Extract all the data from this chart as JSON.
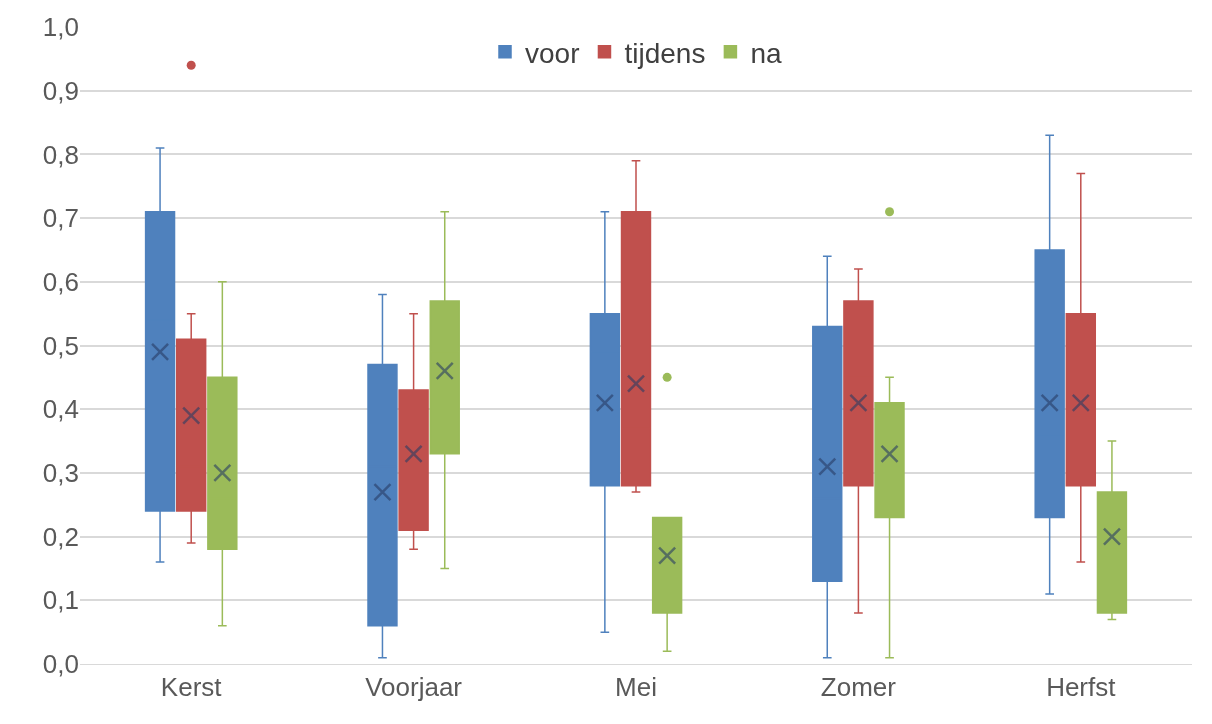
{
  "chart_data": {
    "type": "box",
    "categories": [
      "Kerst",
      "Voorjaar",
      "Mei",
      "Zomer",
      "Herfst"
    ],
    "ylim": [
      0,
      1
    ],
    "yticks": [
      {
        "value": 0,
        "label": "0,0"
      },
      {
        "value": 0.1,
        "label": "0,1"
      },
      {
        "value": 0.2,
        "label": "0,2"
      },
      {
        "value": 0.3,
        "label": "0,3"
      },
      {
        "value": 0.4,
        "label": "0,4"
      },
      {
        "value": 0.5,
        "label": "0,5"
      },
      {
        "value": 0.6,
        "label": "0,6"
      },
      {
        "value": 0.7,
        "label": "0,7"
      },
      {
        "value": 0.8,
        "label": "0,8"
      },
      {
        "value": 0.9,
        "label": "0,9"
      },
      {
        "value": 1,
        "label": "1,0"
      }
    ],
    "grid": "y",
    "legend": "top",
    "series": [
      {
        "name": "voor",
        "color": "#4f81bd",
        "boxes": [
          {
            "low": 0.16,
            "q1": 0.24,
            "median": 0.54,
            "q3": 0.71,
            "high": 0.81,
            "mean": 0.49
          },
          {
            "low": 0.01,
            "q1": 0.06,
            "median": 0.31,
            "q3": 0.47,
            "high": 0.58,
            "mean": 0.27
          },
          {
            "low": 0.05,
            "q1": 0.28,
            "median": 0.49,
            "q3": 0.55,
            "high": 0.71,
            "mean": 0.41
          },
          {
            "low": 0.01,
            "q1": 0.13,
            "median": 0.26,
            "q3": 0.53,
            "high": 0.64,
            "mean": 0.31
          },
          {
            "low": 0.11,
            "q1": 0.23,
            "median": 0.36,
            "q3": 0.65,
            "high": 0.83,
            "mean": 0.41
          }
        ]
      },
      {
        "name": "tijdens",
        "color": "#c0504d",
        "boxes": [
          {
            "low": 0.19,
            "q1": 0.24,
            "median": 0.31,
            "q3": 0.51,
            "high": 0.55,
            "mean": 0.39,
            "outliers": [
              0.94
            ]
          },
          {
            "low": 0.18,
            "q1": 0.21,
            "median": 0.32,
            "q3": 0.43,
            "high": 0.55,
            "mean": 0.33
          },
          {
            "low": 0.27,
            "q1": 0.28,
            "median": 0.37,
            "q3": 0.71,
            "high": 0.79,
            "mean": 0.44
          },
          {
            "low": 0.08,
            "q1": 0.28,
            "median": 0.45,
            "q3": 0.57,
            "high": 0.62,
            "mean": 0.41
          },
          {
            "low": 0.16,
            "q1": 0.28,
            "median": 0.39,
            "q3": 0.55,
            "high": 0.77,
            "mean": 0.41
          }
        ]
      },
      {
        "name": "na",
        "color": "#9bbb59",
        "boxes": [
          {
            "low": 0.06,
            "q1": 0.18,
            "median": 0.26,
            "q3": 0.45,
            "high": 0.6,
            "mean": 0.3
          },
          {
            "low": 0.15,
            "q1": 0.33,
            "median": 0.49,
            "q3": 0.57,
            "high": 0.71,
            "mean": 0.46
          },
          {
            "low": 0.02,
            "q1": 0.08,
            "median": 0.16,
            "q3": 0.23,
            "high": 0.23,
            "mean": 0.17,
            "outliers": [
              0.45
            ]
          },
          {
            "low": 0.01,
            "q1": 0.23,
            "median": 0.33,
            "q3": 0.41,
            "high": 0.45,
            "mean": 0.33,
            "outliers": [
              0.71
            ]
          },
          {
            "low": 0.07,
            "q1": 0.08,
            "median": 0.18,
            "q3": 0.27,
            "high": 0.35,
            "mean": 0.2
          }
        ]
      }
    ]
  }
}
